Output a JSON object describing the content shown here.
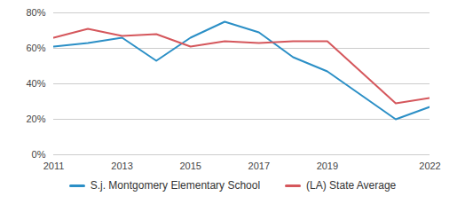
{
  "chart_data": {
    "type": "line",
    "x": [
      2011,
      2012,
      2013,
      2014,
      2015,
      2016,
      2017,
      2018,
      2019,
      2021,
      2022
    ],
    "series": [
      {
        "name": "S.j. Montgomery Elementary School",
        "color": "#2b8fc6",
        "values": [
          61,
          63,
          66,
          53,
          66,
          75,
          69,
          55,
          47,
          20,
          27
        ]
      },
      {
        "name": "(LA) State Average",
        "color": "#d5575c",
        "values": [
          66,
          71,
          67,
          68,
          61,
          64,
          63,
          64,
          64,
          29,
          32
        ]
      }
    ],
    "xlim": [
      2011,
      2022
    ],
    "xticks": [
      2011,
      2013,
      2015,
      2017,
      2019,
      2022
    ],
    "ylim": [
      0,
      80
    ],
    "yticks": [
      {
        "value": 0,
        "label": "0%"
      },
      {
        "value": 20,
        "label": "20%"
      },
      {
        "value": 40,
        "label": "40%"
      },
      {
        "value": 60,
        "label": "60%"
      },
      {
        "value": 80,
        "label": "80%"
      }
    ],
    "grid": true,
    "legend": "bottom"
  }
}
